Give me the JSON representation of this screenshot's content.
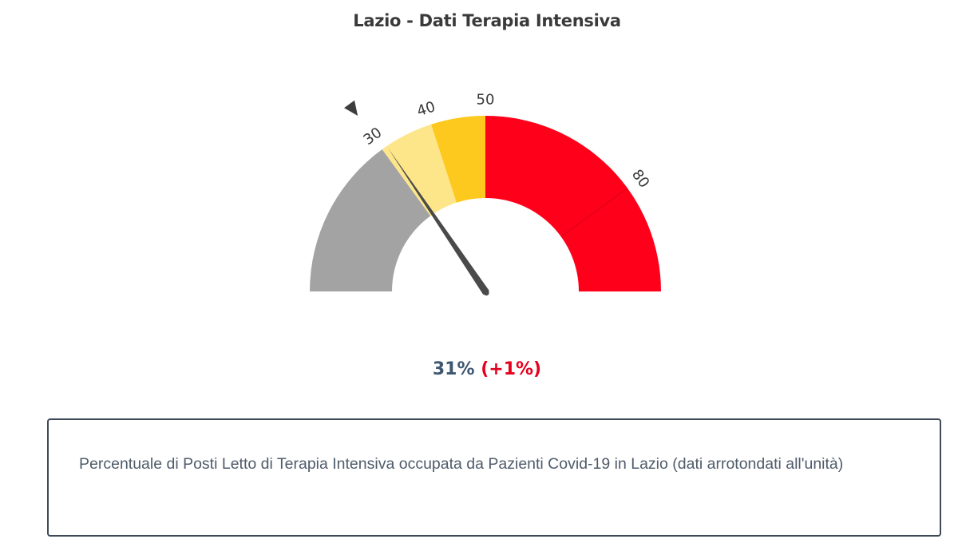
{
  "chart_title": "Lazio - Dati Terapia Intensiva",
  "value": {
    "current": "31%",
    "delta": "(+1%)"
  },
  "description": "Percentuale di Posti Letto di Terapia Intensiva occupata da Pazienti Covid-19 in Lazio (dati arrotondati all'unità)",
  "chart_data": {
    "type": "gauge",
    "title": "Lazio - Dati Terapia Intensiva",
    "min": 0,
    "max": 100,
    "value": 31,
    "previous_value": 30,
    "bands": [
      {
        "from": 0,
        "to": 30,
        "color": "#a3a3a3"
      },
      {
        "from": 30,
        "to": 40,
        "color": "#fde68a"
      },
      {
        "from": 40,
        "to": 50,
        "color": "#fdc91e"
      },
      {
        "from": 50,
        "to": 100,
        "color": "#ff001a"
      }
    ],
    "tick_labels": [
      {
        "value": 30,
        "text": "30"
      },
      {
        "value": 40,
        "text": "40"
      },
      {
        "value": 50,
        "text": "50"
      },
      {
        "value": 80,
        "text": "80"
      }
    ],
    "threshold_marker": 30,
    "divider_at": 80,
    "colors": {
      "needle": "#4a4a4a",
      "marker": "#3d3d3d",
      "tick_text": "#3a3a3a",
      "divider": "#d5001a"
    }
  }
}
